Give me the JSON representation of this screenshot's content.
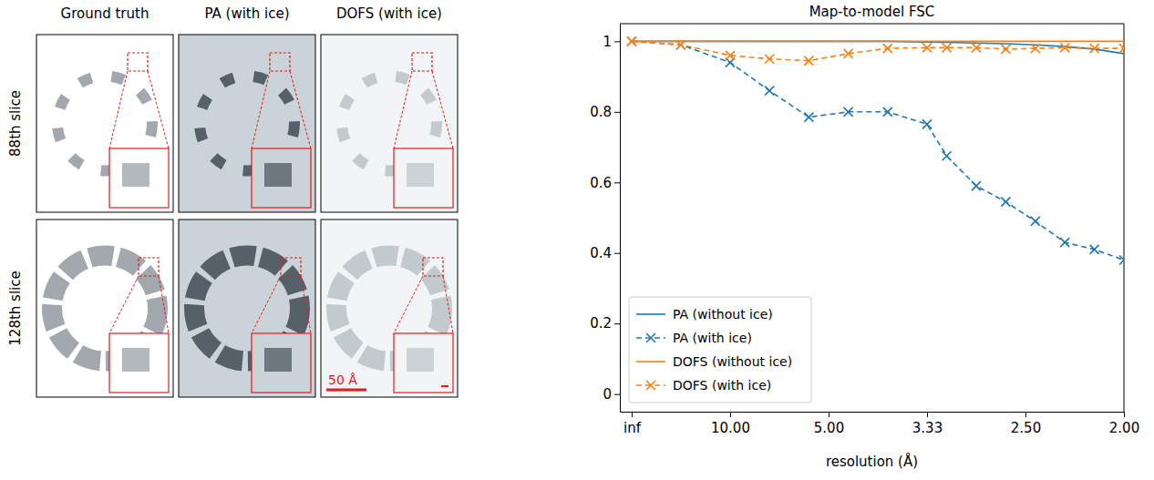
{
  "image_grid": {
    "columns": [
      "Ground truth",
      "PA (with ice)",
      "DOFS (with ice)"
    ],
    "rows": [
      "88th slice",
      "128th slice"
    ],
    "scale_bar": "50 Å"
  },
  "chart_data": {
    "type": "line",
    "title": "Map-to-model FSC",
    "x_label": "resolution (Å)",
    "x": [
      0,
      0.05,
      0.1,
      0.14,
      0.18,
      0.22,
      0.26,
      0.3,
      0.32,
      0.35,
      0.38,
      0.41,
      0.44,
      0.47,
      0.5
    ],
    "xlim": [
      -0.012,
      0.5
    ],
    "xticks": [
      {
        "value": 0,
        "label": "inf"
      },
      {
        "value": 0.1,
        "label": "10.00"
      },
      {
        "value": 0.2,
        "label": "5.00"
      },
      {
        "value": 0.3,
        "label": "3.33"
      },
      {
        "value": 0.4,
        "label": "2.50"
      },
      {
        "value": 0.5,
        "label": "2.00"
      }
    ],
    "ylim": [
      -0.05,
      1.05
    ],
    "yticks": [
      0,
      0.2,
      0.4,
      0.6,
      0.8,
      1
    ],
    "legend": "lower left",
    "series": [
      {
        "name": "PA (without ice)",
        "color": "#1f77b4",
        "line_style": "solid",
        "values": [
          1.0,
          1.0,
          1.0,
          1.0,
          1.0,
          1.0,
          1.0,
          0.998,
          0.997,
          0.995,
          0.993,
          0.99,
          0.985,
          0.978,
          0.965
        ]
      },
      {
        "name": "PA (with ice)",
        "color": "#1f77b4",
        "line_style": "dashed",
        "marker": "x",
        "values": [
          1.0,
          0.99,
          0.94,
          0.86,
          0.785,
          0.8,
          0.8,
          0.765,
          0.675,
          0.59,
          0.545,
          0.49,
          0.43,
          0.41,
          0.38
        ]
      },
      {
        "name": "DOFS (without ice)",
        "color": "#ff7f0e",
        "line_style": "solid",
        "values": [
          1.0,
          1.0,
          1.0,
          1.0,
          1.0,
          1.0,
          1.0,
          1.0,
          1.0,
          1.0,
          1.0,
          1.0,
          1.0,
          1.0,
          1.0
        ]
      },
      {
        "name": "DOFS (with ice)",
        "color": "#ff7f0e",
        "line_style": "dashed",
        "marker": "x",
        "values": [
          1.0,
          0.99,
          0.96,
          0.95,
          0.945,
          0.965,
          0.98,
          0.982,
          0.982,
          0.982,
          0.978,
          0.98,
          0.982,
          0.98,
          0.98
        ]
      }
    ]
  }
}
